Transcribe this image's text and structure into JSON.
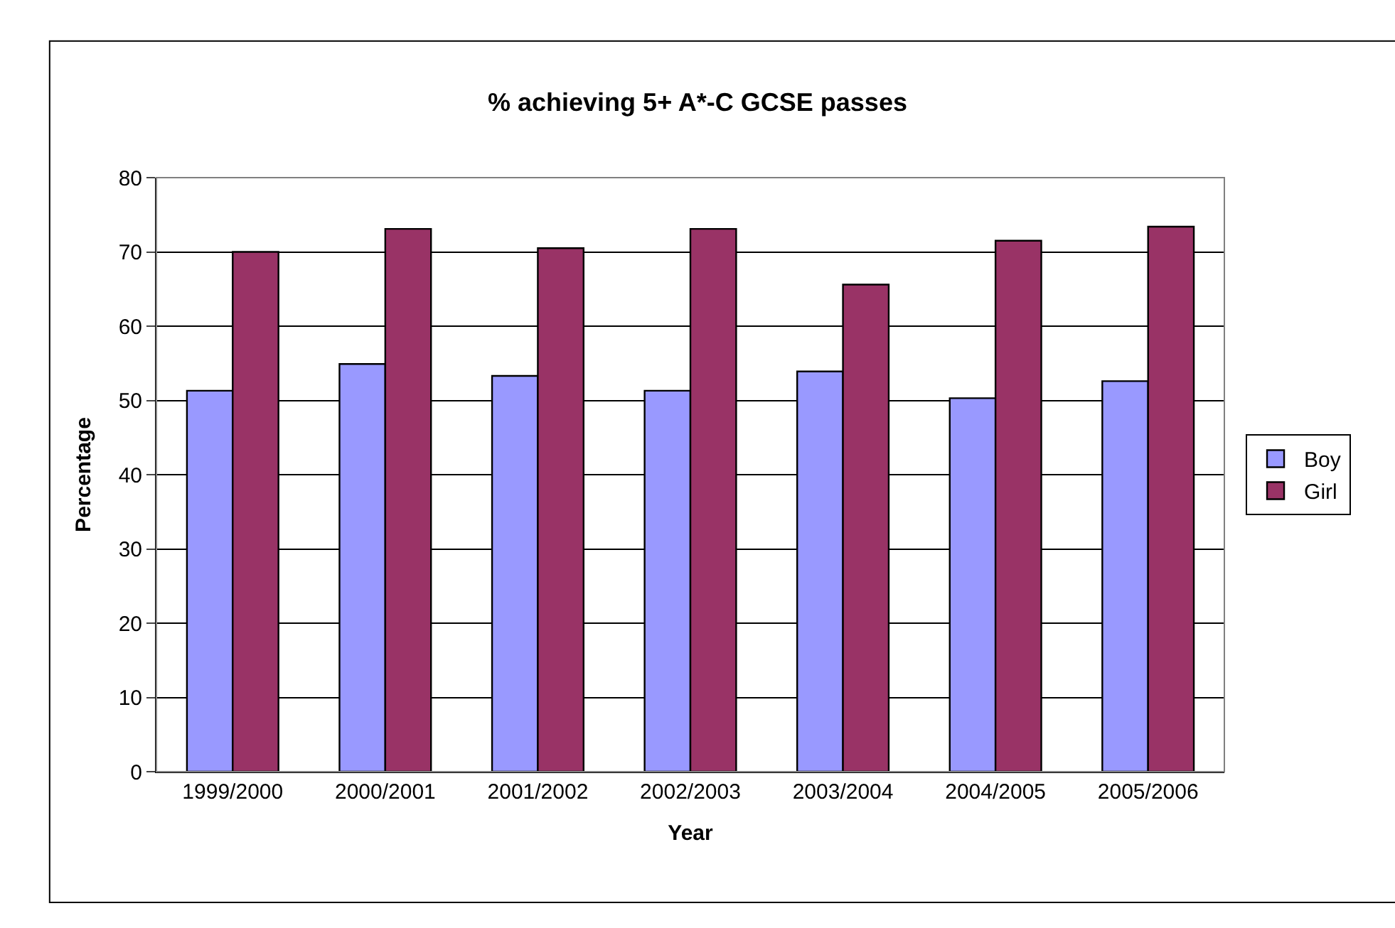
{
  "chart_data": {
    "type": "bar",
    "title": "% achieving 5+ A*-C GCSE passes",
    "xlabel": "Year",
    "ylabel": "Percentage",
    "categories": [
      "1999/2000",
      "2000/2001",
      "2001/2002",
      "2002/2003",
      "2003/2004",
      "2004/2005",
      "2005/2006"
    ],
    "series": [
      {
        "name": "Boy",
        "color": "#9999ff",
        "values": [
          51.3,
          54.9,
          53.3,
          51.3,
          53.9,
          50.3,
          52.6
        ]
      },
      {
        "name": "Girl",
        "color": "#993366",
        "values": [
          70.0,
          73.1,
          70.5,
          73.1,
          65.6,
          71.5,
          73.4
        ]
      }
    ],
    "ylim": [
      0,
      80
    ],
    "yticks": [
      0,
      10,
      20,
      30,
      40,
      50,
      60,
      70,
      80
    ],
    "grid": "y",
    "legend": "right"
  }
}
